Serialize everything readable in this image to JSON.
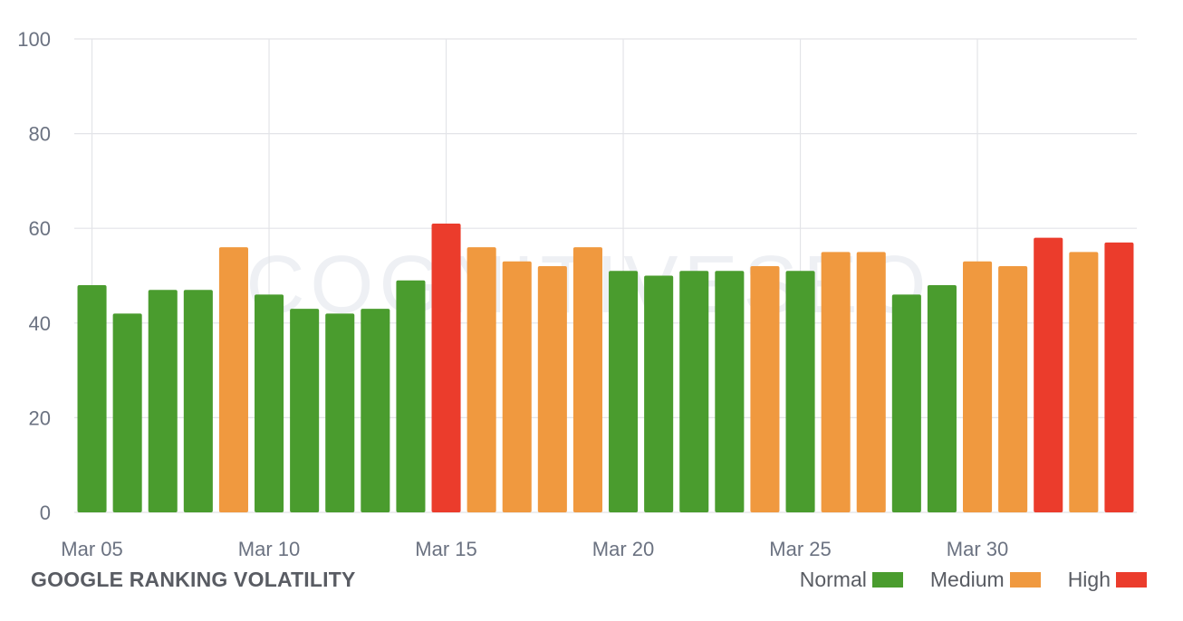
{
  "watermark": "COGNITIVESEO",
  "footer": {
    "title": "GOOGLE RANKING VOLATILITY"
  },
  "legend": [
    {
      "label": "Normal",
      "color": "#4a9c2e"
    },
    {
      "label": "Medium",
      "color": "#f0993f"
    },
    {
      "label": "High",
      "color": "#eb3c2c"
    }
  ],
  "chart_data": {
    "type": "bar",
    "title": "GOOGLE RANKING VOLATILITY",
    "xlabel": "",
    "ylabel": "",
    "ylim": [
      0,
      100
    ],
    "yticks": [
      0,
      20,
      40,
      60,
      80,
      100
    ],
    "x_tick_labels": [
      "Mar 05",
      "Mar 10",
      "Mar 15",
      "Mar 20",
      "Mar 25",
      "Mar 30"
    ],
    "categories": [
      "Mar 05",
      "Mar 06",
      "Mar 07",
      "Mar 08",
      "Mar 09",
      "Mar 10",
      "Mar 11",
      "Mar 12",
      "Mar 13",
      "Mar 14",
      "Mar 15",
      "Mar 16",
      "Mar 17",
      "Mar 18",
      "Mar 19",
      "Mar 20",
      "Mar 21",
      "Mar 22",
      "Mar 23",
      "Mar 24",
      "Mar 25",
      "Mar 26",
      "Mar 27",
      "Mar 28",
      "Mar 29",
      "Mar 30",
      "Mar 31",
      "Apr 01",
      "Apr 02",
      "Apr 03"
    ],
    "values": [
      48,
      42,
      47,
      47,
      56,
      46,
      43,
      42,
      43,
      49,
      61,
      56,
      53,
      52,
      56,
      51,
      50,
      51,
      51,
      52,
      51,
      55,
      55,
      46,
      48,
      53,
      52,
      58,
      55,
      57
    ],
    "levels": [
      "Normal",
      "Normal",
      "Normal",
      "Normal",
      "Medium",
      "Normal",
      "Normal",
      "Normal",
      "Normal",
      "Normal",
      "High",
      "Medium",
      "Medium",
      "Medium",
      "Medium",
      "Normal",
      "Normal",
      "Normal",
      "Normal",
      "Medium",
      "Normal",
      "Medium",
      "Medium",
      "Normal",
      "Normal",
      "Medium",
      "Medium",
      "High",
      "Medium",
      "High"
    ],
    "grid": true,
    "legend_position": "bottom-right"
  }
}
